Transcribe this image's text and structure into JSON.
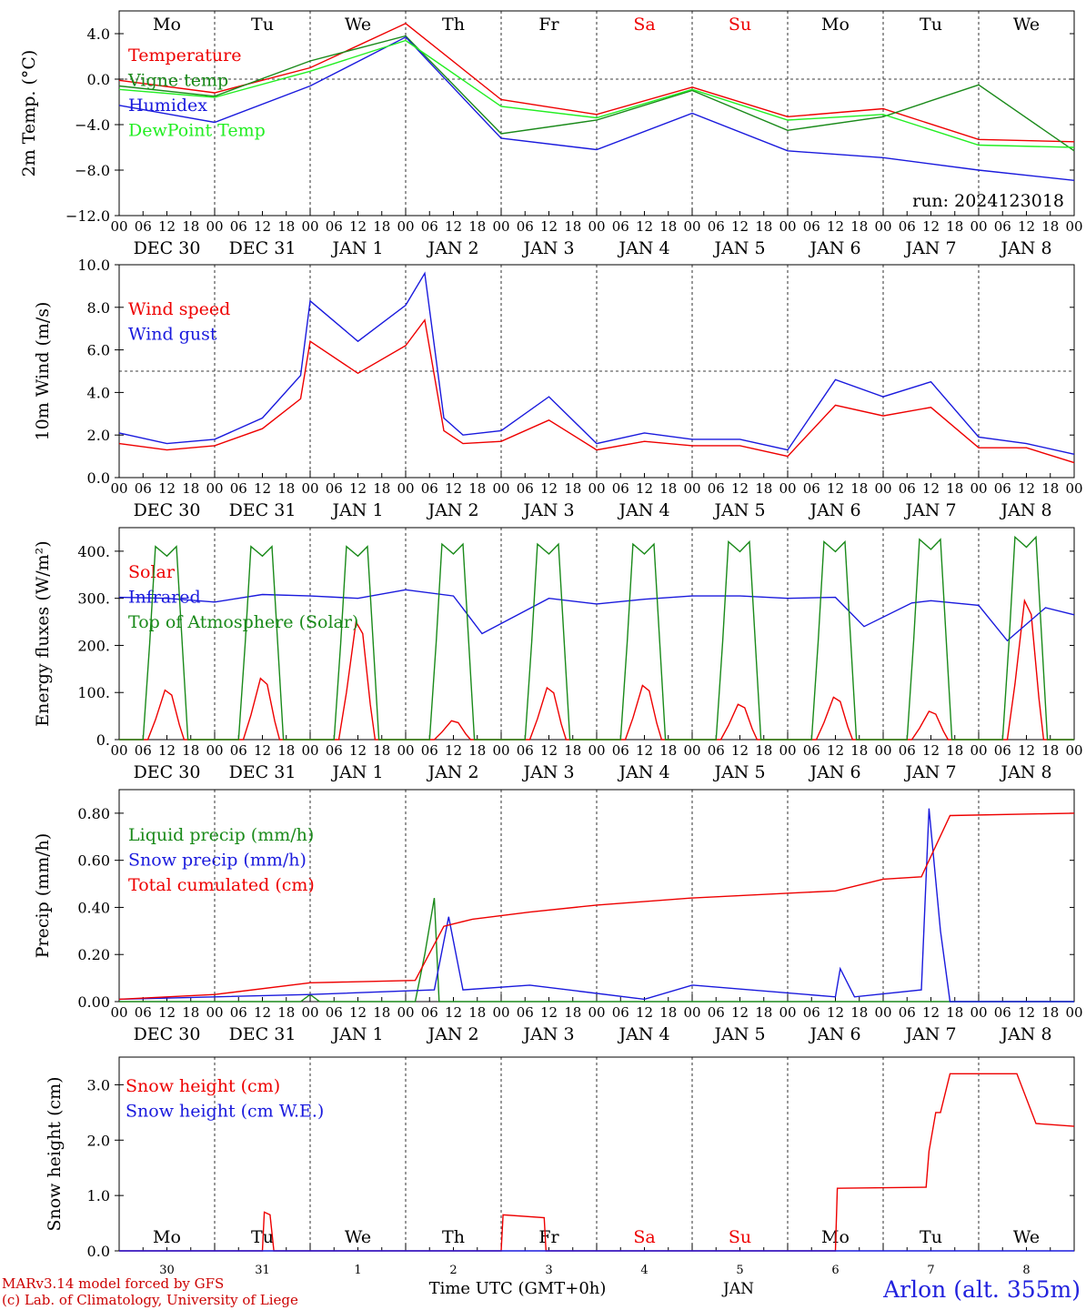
{
  "colors": {
    "red": "#ee0000",
    "green": "#1a8a1a",
    "blue": "#1a1add",
    "lightgreen": "#22ee22",
    "black": "#000000"
  },
  "day_names": [
    "Mo",
    "Tu",
    "We",
    "Th",
    "Fr",
    "Sa",
    "Su",
    "Mo",
    "Tu",
    "We"
  ],
  "weekend_days": [
    5,
    6
  ],
  "hour_ticks": [
    "00",
    "06",
    "12",
    "18"
  ],
  "date_labels": [
    "DEC 30",
    "DEC 31",
    "JAN  1",
    "JAN  2",
    "JAN  3",
    "JAN  4",
    "JAN  5",
    "JAN  6",
    "JAN  7",
    "JAN  8"
  ],
  "bottom_day_numbers": [
    "30",
    "31",
    "1",
    "2",
    "3",
    "4",
    "5",
    "6",
    "7",
    "8"
  ],
  "bottom_axis": {
    "xlabel": "Time UTC (GMT+0h)",
    "month": "JAN"
  },
  "footer": {
    "line1": "MARv3.14 model forced by GFS",
    "line2": "(c) Lab. of Climatology, University of Liege",
    "location": "Arlon (alt. 355m)"
  },
  "run_label": "run: 2024123018",
  "chart_data": [
    {
      "type": "line",
      "ylabel": "2m Temp. (°C)",
      "ylim": [
        -12,
        6
      ],
      "yticks": [
        4,
        0,
        -4,
        -8,
        -12
      ],
      "ytick_labels": [
        "4.0",
        "0.0",
        "−4.0",
        "−8.0",
        "−12.0"
      ],
      "ref_line": 0,
      "x_days": [
        0,
        1,
        2,
        3,
        4,
        5,
        6,
        7,
        8,
        9,
        10
      ],
      "series": [
        {
          "name": "Temperature",
          "color": "red",
          "values": [
            -0.1,
            -1.2,
            1.0,
            4.9,
            -1.8,
            -3.1,
            -0.7,
            -3.3,
            -2.6,
            -5.3,
            -5.5
          ]
        },
        {
          "name": "Vigne temp",
          "color": "green",
          "values": [
            -0.6,
            -1.5,
            1.6,
            3.8,
            -4.8,
            -3.6,
            -1.0,
            -4.5,
            -3.3,
            -0.5,
            -6.3
          ]
        },
        {
          "name": "Humidex",
          "color": "blue",
          "values": [
            -2.3,
            -3.8,
            -0.6,
            3.7,
            -5.2,
            -6.2,
            -3.0,
            -6.3,
            -6.9,
            -8.0,
            -8.9
          ]
        },
        {
          "name": "DewPoint Temp",
          "color": "lightgreen",
          "values": [
            -0.9,
            -1.6,
            0.7,
            3.4,
            -2.4,
            -3.4,
            -0.9,
            -3.6,
            -3.1,
            -5.8,
            -6.0
          ]
        }
      ]
    },
    {
      "type": "line",
      "ylabel": "10m Wind (m/s)",
      "ylim": [
        0,
        10
      ],
      "yticks": [
        0,
        2,
        4,
        6,
        8,
        10
      ],
      "ytick_labels": [
        "0.0",
        "2.0",
        "4.0",
        "6.0",
        "8.0",
        "10.0"
      ],
      "ref_line": 5,
      "x_days": [
        0,
        0.5,
        1,
        1.5,
        1.9,
        2.0,
        2.5,
        3.0,
        3.2,
        3.4,
        3.6,
        4.0,
        4.5,
        5.0,
        5.5,
        6.0,
        6.5,
        7.0,
        7.5,
        8.0,
        8.5,
        9.0,
        9.5,
        10.0
      ],
      "series": [
        {
          "name": "Wind speed",
          "color": "red",
          "values": [
            1.6,
            1.3,
            1.5,
            2.3,
            3.7,
            6.4,
            4.9,
            6.2,
            7.4,
            2.2,
            1.6,
            1.7,
            2.7,
            1.3,
            1.7,
            1.5,
            1.5,
            1.0,
            3.4,
            2.9,
            3.3,
            1.4,
            1.4,
            0.7
          ]
        },
        {
          "name": "Wind gust",
          "color": "blue",
          "values": [
            2.1,
            1.6,
            1.8,
            2.8,
            4.8,
            8.3,
            6.4,
            8.1,
            9.6,
            2.8,
            2.0,
            2.2,
            3.8,
            1.6,
            2.1,
            1.8,
            1.8,
            1.3,
            4.6,
            3.8,
            4.5,
            1.9,
            1.6,
            1.1
          ]
        }
      ]
    },
    {
      "type": "line",
      "ylabel": "Energy fluxes (W/m²)",
      "ylim": [
        0,
        450
      ],
      "yticks": [
        0,
        100,
        200,
        300,
        400
      ],
      "ytick_labels": [
        "0.",
        "100.",
        "200.",
        "300.",
        "400."
      ],
      "series": [
        {
          "name": "Solar",
          "color": "red",
          "daily_peaks": [
            105,
            130,
            250,
            40,
            110,
            115,
            75,
            90,
            60,
            295
          ]
        },
        {
          "name": "Infrared",
          "color": "blue",
          "x_days": [
            0,
            0.5,
            1,
            1.5,
            2,
            2.5,
            3,
            3.5,
            3.8,
            4.5,
            5,
            5.5,
            6,
            6.5,
            7,
            7.5,
            7.8,
            8.3,
            8.5,
            9,
            9.3,
            9.7,
            10
          ],
          "values": [
            302,
            300,
            292,
            308,
            305,
            300,
            318,
            305,
            225,
            300,
            288,
            298,
            305,
            305,
            300,
            302,
            240,
            290,
            295,
            285,
            210,
            280,
            265
          ]
        },
        {
          "name": "Top of Atmosphere (Solar)",
          "color": "green",
          "daily_peaks": [
            410,
            410,
            410,
            415,
            415,
            415,
            420,
            420,
            425,
            430
          ]
        }
      ]
    },
    {
      "type": "line",
      "ylabel": "Precip (mm/h)",
      "ylim": [
        0,
        0.9
      ],
      "yticks": [
        0,
        0.2,
        0.4,
        0.6,
        0.8
      ],
      "ytick_labels": [
        "0.00",
        "0.20",
        "0.40",
        "0.60",
        "0.80"
      ],
      "series": [
        {
          "name": "Liquid precip (mm/h)",
          "color": "green",
          "x_days": [
            0,
            1.9,
            2.0,
            2.1,
            3.1,
            3.2,
            3.3,
            3.35,
            10
          ],
          "values": [
            0,
            0,
            0.03,
            0,
            0,
            0.2,
            0.44,
            0,
            0
          ]
        },
        {
          "name": "Snow precip (mm/h)",
          "color": "blue",
          "x_days": [
            0,
            1.0,
            2.0,
            3.3,
            3.45,
            3.6,
            4.3,
            5.5,
            6.0,
            7.5,
            7.55,
            7.7,
            8.4,
            8.48,
            8.6,
            8.7,
            10
          ],
          "values": [
            0.01,
            0.02,
            0.03,
            0.05,
            0.36,
            0.05,
            0.07,
            0.01,
            0.07,
            0.02,
            0.14,
            0.02,
            0.05,
            0.82,
            0.3,
            0,
            0
          ]
        },
        {
          "name": "Total cumulated (cm)",
          "color": "red",
          "x_days": [
            0,
            1.0,
            2.0,
            3.1,
            3.4,
            3.7,
            4.3,
            5.0,
            6.0,
            7.5,
            8.0,
            8.4,
            8.7,
            10
          ],
          "values": [
            0.01,
            0.03,
            0.08,
            0.09,
            0.32,
            0.35,
            0.38,
            0.41,
            0.44,
            0.47,
            0.52,
            0.53,
            0.79,
            0.8
          ]
        }
      ]
    },
    {
      "type": "line",
      "ylabel": "Snow height (cm)",
      "ylim": [
        0,
        3.5
      ],
      "yticks": [
        0,
        1,
        2,
        3
      ],
      "ytick_labels": [
        "0.0",
        "1.0",
        "2.0",
        "3.0"
      ],
      "series": [
        {
          "name": "Snow height (cm)",
          "color": "red",
          "x_days": [
            0,
            1.5,
            1.52,
            1.58,
            1.62,
            4.0,
            4.02,
            4.45,
            4.47,
            5.0,
            7.5,
            7.52,
            8.45,
            8.48,
            8.55,
            8.6,
            8.7,
            8.72,
            9.4,
            9.6,
            10
          ],
          "values": [
            0,
            0,
            0.7,
            0.65,
            0,
            0,
            0.65,
            0.6,
            0,
            0,
            0,
            1.13,
            1.15,
            1.8,
            2.5,
            2.5,
            3.2,
            3.2,
            3.2,
            2.3,
            2.25
          ]
        },
        {
          "name": "Snow height (cm W.E.)",
          "color": "blue",
          "x_days": [
            0,
            10
          ],
          "values": [
            0,
            0
          ]
        }
      ]
    }
  ]
}
